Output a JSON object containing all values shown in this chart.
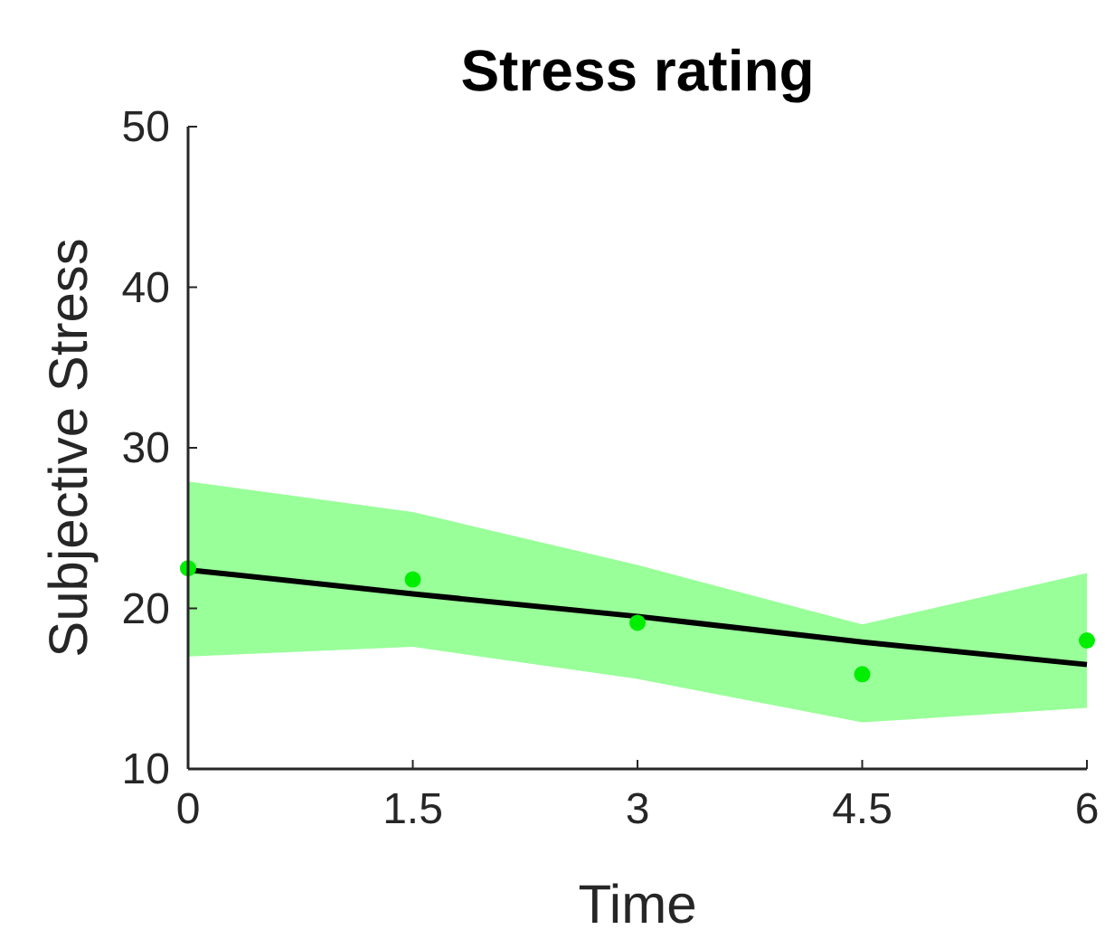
{
  "chart_data": {
    "type": "line",
    "title": "Stress rating",
    "xlabel": "Time",
    "ylabel": "Subjective Stress",
    "xlim": [
      0,
      6
    ],
    "xticks": [
      0,
      1.5,
      3,
      4.5,
      6
    ],
    "ylim": [
      10,
      50
    ],
    "yticks": [
      10,
      20,
      30,
      40,
      50
    ],
    "grid": false,
    "series": [
      {
        "color": "#000000",
        "x": [
          0,
          1.5,
          3,
          4.5,
          6
        ],
        "values": [
          22.4,
          20.9,
          19.5,
          17.9,
          16.5
        ],
        "lower": [
          17.0,
          17.6,
          15.6,
          12.9,
          13.8
        ],
        "upper": [
          27.9,
          26.0,
          22.7,
          19.0,
          22.2
        ]
      },
      {
        "type": "scatter",
        "color": "#00ee00",
        "marker": "circle",
        "x": [
          0,
          1.5,
          3,
          4.5,
          6
        ],
        "values": [
          22.5,
          21.8,
          19.1,
          15.9,
          18.0
        ]
      }
    ]
  }
}
